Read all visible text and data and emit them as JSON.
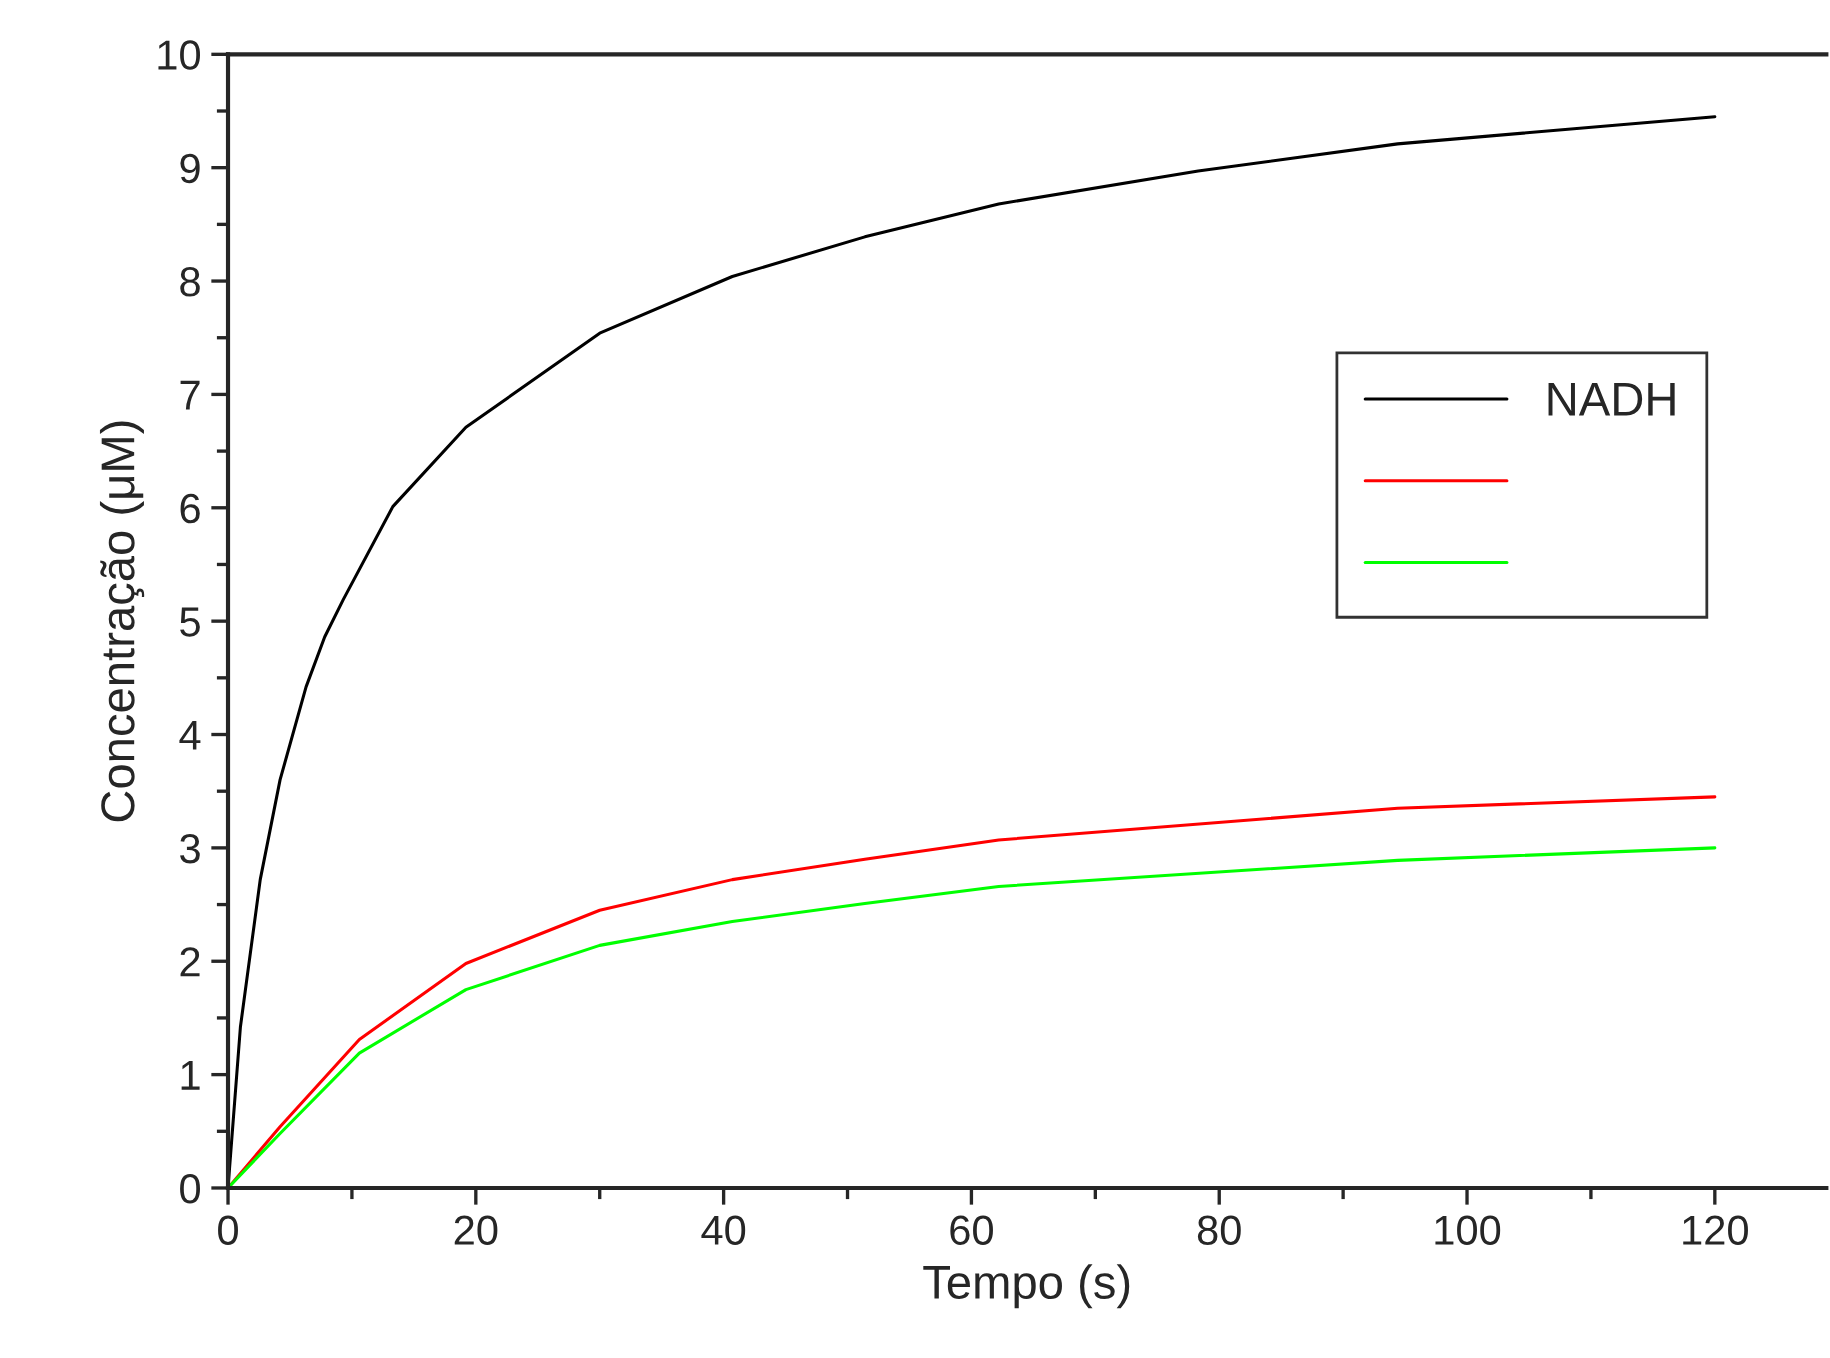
{
  "chart_data": {
    "type": "line",
    "xlabel": "Tempo (s)",
    "ylabel": "Concentração (μM)",
    "xlim": [
      0,
      129
    ],
    "ylim": [
      0,
      10
    ],
    "xticks": [
      0,
      20,
      40,
      60,
      80,
      100,
      120
    ],
    "yticks": [
      0,
      1,
      2,
      3,
      4,
      5,
      6,
      7,
      8,
      9,
      10
    ],
    "grid": false,
    "legend": "right",
    "marker": "none",
    "line_style": "solid",
    "series": [
      {
        "name": "NADH",
        "color": "#000000",
        "x": [
          0,
          1.0,
          2.6,
          4.2,
          6.3,
          7.8,
          9.3,
          13.3,
          19.2,
          30,
          40.7,
          51.4,
          62.2,
          78.3,
          94.4,
          120
        ],
        "values": [
          0,
          1.42,
          2.72,
          3.6,
          4.42,
          4.86,
          5.19,
          6.01,
          6.71,
          7.54,
          8.04,
          8.39,
          8.68,
          8.97,
          9.21,
          9.45
        ]
      },
      {
        "color": "#ff0000",
        "x": [
          0,
          4.2,
          10.6,
          19.2,
          30,
          40.7,
          51.4,
          62.2,
          94.4,
          120
        ],
        "values": [
          0,
          0.54,
          1.31,
          1.98,
          2.45,
          2.72,
          2.9,
          3.07,
          3.35,
          3.45
        ]
      },
      {
        "color": "#00ff00",
        "x": [
          0,
          4.2,
          10.6,
          19.2,
          30,
          40.7,
          51.4,
          62.2,
          94.4,
          120
        ],
        "values": [
          0,
          0.48,
          1.19,
          1.75,
          2.14,
          2.35,
          2.51,
          2.66,
          2.89,
          3.0
        ]
      }
    ]
  }
}
